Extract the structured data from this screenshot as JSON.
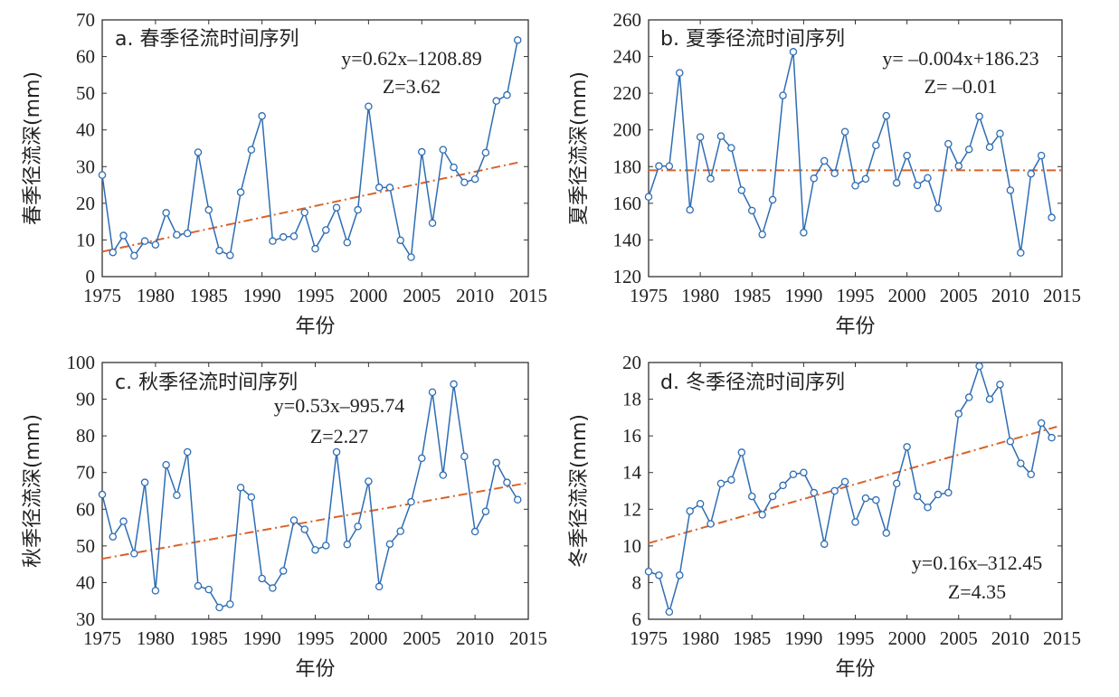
{
  "chart_data": [
    {
      "type": "line",
      "title": "a. 春季径流时间序列",
      "xlabel": "年份",
      "ylabel": "春季径流深(mm)",
      "xlim": [
        1975,
        2015
      ],
      "ylim": [
        0,
        70
      ],
      "xticks": [
        1975,
        1980,
        1985,
        1990,
        1995,
        2000,
        2005,
        2010,
        2015
      ],
      "yticks": [
        0,
        10,
        20,
        30,
        40,
        50,
        60,
        70
      ],
      "x_start": 1975,
      "values": [
        27.7,
        6.6,
        11.2,
        5.7,
        9.7,
        8.7,
        17.4,
        11.4,
        11.8,
        33.9,
        18.2,
        7.1,
        5.8,
        23.0,
        34.6,
        43.8,
        9.7,
        10.8,
        11.0,
        17.5,
        7.6,
        12.7,
        18.8,
        9.3,
        18.2,
        46.4,
        24.3,
        24.3,
        9.9,
        5.3,
        34.0,
        14.6,
        34.6,
        29.8,
        25.7,
        26.6,
        33.8,
        47.9,
        49.5,
        64.5
      ],
      "trend": {
        "x": [
          1975,
          2014
        ],
        "y": [
          6.8,
          31.1
        ]
      },
      "equation": "y=0.62x–1208.89",
      "z_text": "Z=3.62",
      "annotation_position": "top-right",
      "grid": false,
      "series_color": "#2e6db4",
      "trend_color": "#d9632a"
    },
    {
      "type": "line",
      "title": "b. 夏季径流时间序列",
      "xlabel": "年份",
      "ylabel": "夏季径流深(mm)",
      "xlim": [
        1975,
        2015
      ],
      "ylim": [
        120,
        260
      ],
      "xticks": [
        1975,
        1980,
        1985,
        1990,
        1995,
        2000,
        2005,
        2010,
        2015
      ],
      "yticks": [
        120,
        140,
        160,
        180,
        200,
        220,
        240,
        260
      ],
      "x_start": 1975,
      "values": [
        163.5,
        180.3,
        180.2,
        231.1,
        156.4,
        196.1,
        173.4,
        196.6,
        190.2,
        167.1,
        156.0,
        143.0,
        161.9,
        218.8,
        242.6,
        144.0,
        173.6,
        183.1,
        176.3,
        199.0,
        169.6,
        173.3,
        191.6,
        207.7,
        171.1,
        186.0,
        169.8,
        173.8,
        157.3,
        192.4,
        180.3,
        189.4,
        207.4,
        190.6,
        198.0,
        167.1,
        133.0,
        176.1,
        186.0,
        152.2
      ],
      "trend": {
        "x": [
          1975,
          2015
        ],
        "y": [
          178.0,
          178.0
        ]
      },
      "equation": "y= –0.004x+186.23",
      "z_text": "Z= –0.01",
      "annotation_position": "top-right",
      "grid": false,
      "series_color": "#2e6db4",
      "trend_color": "#d9632a"
    },
    {
      "type": "line",
      "title": "c. 秋季径流时间序列",
      "xlabel": "年份",
      "ylabel": "秋季径流深(mm)",
      "xlim": [
        1975,
        2015
      ],
      "ylim": [
        30,
        100
      ],
      "xticks": [
        1975,
        1980,
        1985,
        1990,
        1995,
        2000,
        2005,
        2010,
        2015
      ],
      "yticks": [
        30,
        40,
        50,
        60,
        70,
        80,
        90,
        100
      ],
      "x_start": 1975,
      "values": [
        64.0,
        52.5,
        56.7,
        47.9,
        67.3,
        37.8,
        72.1,
        63.8,
        75.6,
        39.1,
        38.1,
        33.2,
        34.1,
        65.9,
        63.3,
        41.1,
        38.5,
        43.2,
        57.0,
        54.5,
        48.9,
        50.1,
        75.6,
        50.4,
        55.3,
        67.6,
        38.9,
        50.5,
        54.0,
        62.0,
        73.9,
        91.9,
        69.3,
        94.1,
        74.4,
        53.9,
        59.4,
        72.7,
        67.3,
        62.6
      ],
      "trend": {
        "x": [
          1975,
          2015
        ],
        "y": [
          46.5,
          67.2
        ]
      },
      "equation": "y=0.53x–995.74",
      "z_text": "Z=2.27",
      "annotation_position": "top-center",
      "grid": false,
      "series_color": "#2e6db4",
      "trend_color": "#d9632a"
    },
    {
      "type": "line",
      "title": "d. 冬季径流时间序列",
      "xlabel": "年份",
      "ylabel": "冬季径流深(mm)",
      "xlim": [
        1975,
        2015
      ],
      "ylim": [
        6,
        20
      ],
      "xticks": [
        1975,
        1980,
        1985,
        1990,
        1995,
        2000,
        2005,
        2010,
        2015
      ],
      "yticks": [
        6,
        8,
        10,
        12,
        14,
        16,
        18,
        20
      ],
      "x_start": 1975,
      "values": [
        8.6,
        8.4,
        6.4,
        8.4,
        11.9,
        12.3,
        11.2,
        13.4,
        13.6,
        15.1,
        12.7,
        11.7,
        12.7,
        13.3,
        13.9,
        14.0,
        12.9,
        10.1,
        13.0,
        13.5,
        11.3,
        12.6,
        12.5,
        10.7,
        13.4,
        15.4,
        12.7,
        12.1,
        12.8,
        12.9,
        17.2,
        18.1,
        19.8,
        18.0,
        18.8,
        15.7,
        14.5,
        13.9,
        16.7,
        15.9
      ],
      "trend": {
        "x": [
          1975,
          2014.5
        ],
        "y": [
          10.15,
          16.5
        ]
      },
      "equation": "y=0.16x–312.45",
      "z_text": "Z=4.35",
      "annotation_position": "bottom-right",
      "grid": false,
      "series_color": "#2e6db4",
      "trend_color": "#d9632a"
    }
  ]
}
